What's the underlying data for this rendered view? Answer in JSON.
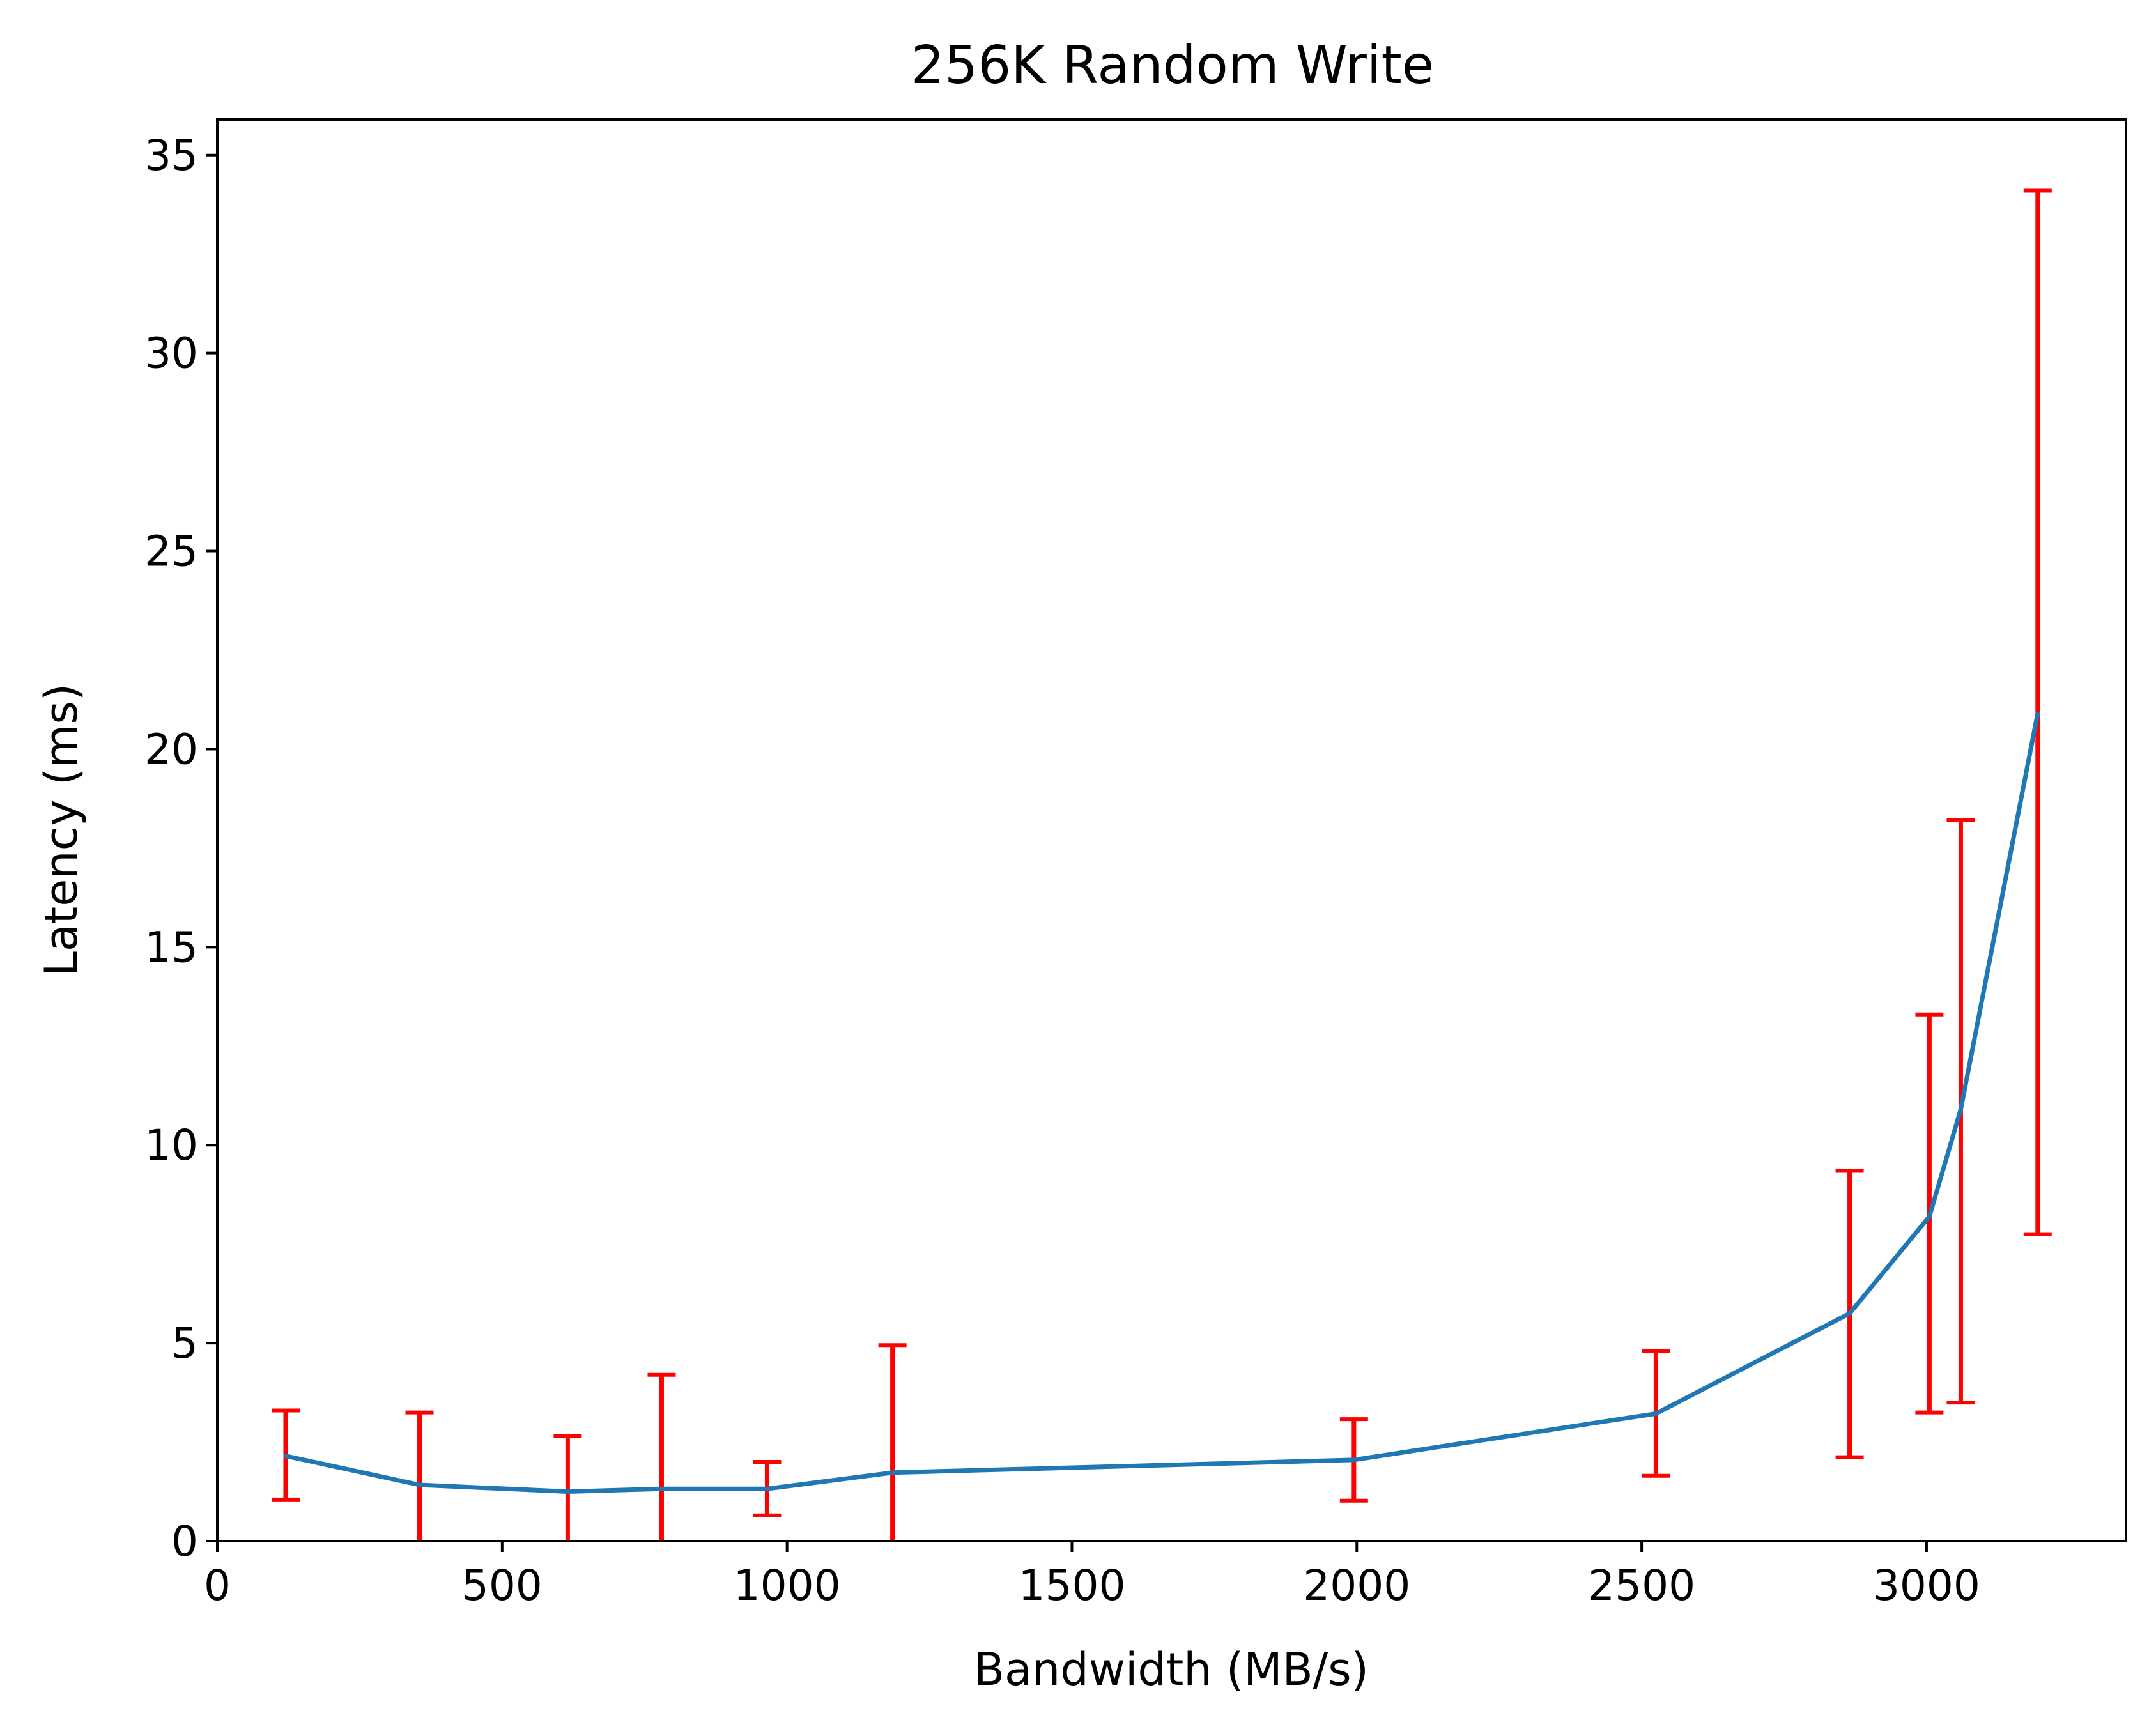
{
  "chart_data": {
    "type": "line",
    "title": "256K  Random Write",
    "xlabel": "Bandwidth (MB/s)",
    "ylabel": "Latency (ms)",
    "xlim": [
      0,
      3350
    ],
    "ylim": [
      0,
      35.9
    ],
    "x_ticks": [
      0,
      500,
      1000,
      1500,
      2000,
      2500,
      3000
    ],
    "y_ticks": [
      0,
      5,
      10,
      15,
      20,
      25,
      30,
      35
    ],
    "x_tick_labels": [
      "0",
      "500",
      "1000",
      "1500",
      "2000",
      "2500",
      "3000"
    ],
    "y_tick_labels": [
      "0",
      "5",
      "10",
      "15",
      "20",
      "25",
      "30",
      "35"
    ],
    "grid": false,
    "legend": "none",
    "series": [
      {
        "color": "#1f77b4",
        "x": [
          120,
          355,
          615,
          780,
          965,
          1185,
          1995,
          2525,
          2865,
          3005,
          3060,
          3195
        ],
        "y": [
          2.15,
          1.42,
          1.25,
          1.32,
          1.32,
          1.73,
          2.05,
          3.22,
          5.75,
          8.2,
          10.9,
          20.9
        ],
        "error_color": "#ff0000",
        "err_low": [
          1.05,
          0.0,
          0.0,
          0.0,
          0.65,
          0.0,
          1.02,
          1.65,
          2.12,
          3.25,
          3.5,
          7.75
        ],
        "err_high": [
          3.3,
          3.25,
          2.65,
          4.2,
          2.0,
          4.95,
          3.08,
          4.8,
          9.35,
          13.3,
          18.2,
          34.1
        ]
      }
    ]
  }
}
